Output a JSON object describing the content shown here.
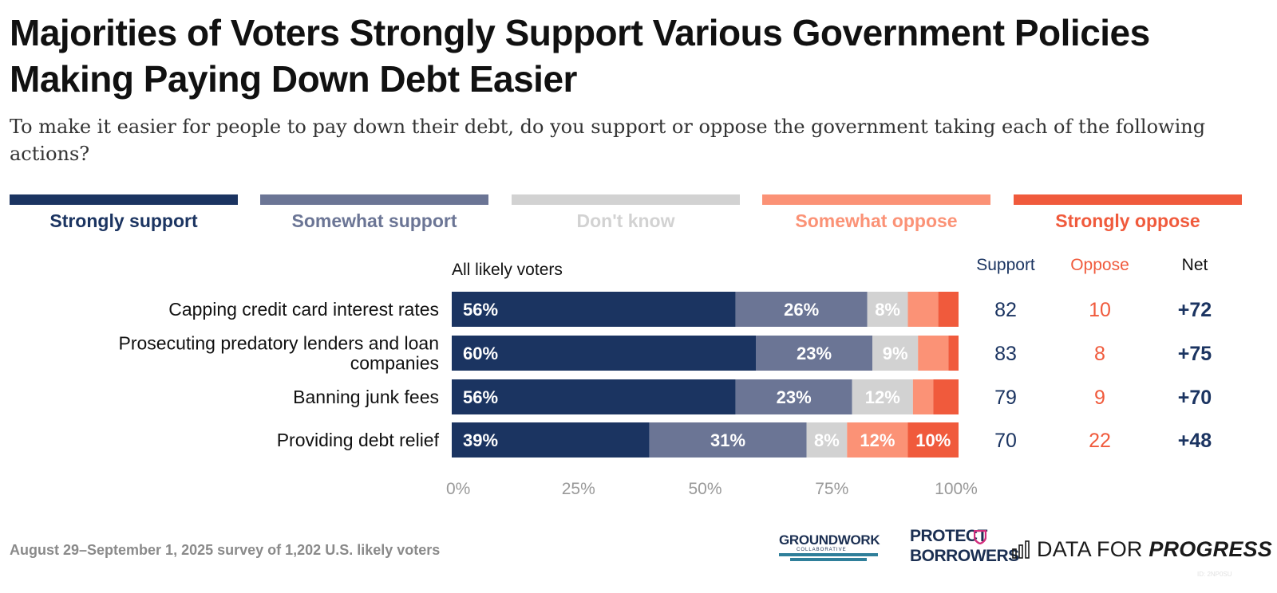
{
  "header": {
    "title": "Majorities of Voters Strongly Support Various Government Policies Making Paying Down Debt Easier",
    "subtitle": "To make it easier for people to pay down their debt, do you support or oppose the government taking each of the following actions?"
  },
  "colors": {
    "strongly_support": "#1b3461",
    "somewhat_support": "#6b7595",
    "dont_know": "#d2d2d2",
    "somewhat_oppose": "#fb9276",
    "strongly_oppose": "#f05a3c",
    "axis_text": "#999999"
  },
  "legend": [
    {
      "label": "Strongly support",
      "color": "#1b3461"
    },
    {
      "label": "Somewhat support",
      "color": "#6b7595"
    },
    {
      "label": "Don't know",
      "color": "#d2d2d2"
    },
    {
      "label": "Somewhat oppose",
      "color": "#fb9276"
    },
    {
      "label": "Strongly oppose",
      "color": "#f05a3c"
    }
  ],
  "chart_data": {
    "type": "bar",
    "orientation": "horizontal",
    "stacked": true,
    "group_label": "All likely voters",
    "categories": [
      [
        "Capping credit card interest rates"
      ],
      [
        "Prosecuting predatory lenders and loan",
        "companies"
      ],
      [
        "Banning junk fees"
      ],
      [
        "Providing debt relief"
      ]
    ],
    "series": [
      {
        "name": "Strongly support",
        "values": [
          56,
          60,
          56,
          39
        ]
      },
      {
        "name": "Somewhat support",
        "values": [
          26,
          23,
          23,
          31
        ]
      },
      {
        "name": "Don't know",
        "values": [
          8,
          9,
          12,
          8
        ]
      },
      {
        "name": "Somewhat oppose",
        "values": [
          6,
          6,
          4,
          12
        ]
      },
      {
        "name": "Strongly oppose",
        "values": [
          4,
          2,
          5,
          10
        ]
      }
    ],
    "data_labels": [
      [
        "56%",
        "26%",
        "8%",
        "",
        ""
      ],
      [
        "60%",
        "23%",
        "9%",
        "",
        ""
      ],
      [
        "56%",
        "23%",
        "12%",
        "",
        ""
      ],
      [
        "39%",
        "31%",
        "8%",
        "12%",
        "10%"
      ]
    ],
    "x_ticks": [
      "0%",
      "25%",
      "50%",
      "75%",
      "100%"
    ],
    "xlim": [
      0,
      100
    ],
    "summary_columns": {
      "headers": [
        "Support",
        "Oppose",
        "Net"
      ],
      "support": [
        "82",
        "83",
        "79",
        "70"
      ],
      "oppose": [
        "10",
        "8",
        "9",
        "22"
      ],
      "net": [
        "+72",
        "+75",
        "+70",
        "+48"
      ]
    }
  },
  "footer": {
    "note": "August 29–September 1, 2025 survey of 1,202 U.S. likely voters",
    "logos": {
      "groundwork": "GROUNDWORK",
      "groundwork_sub": "COLLABORATIVE",
      "protect_borrowers_line1": "PROTECT",
      "protect_borrowers_line2": "BORROWERS",
      "dfp_regular": "DATA FOR ",
      "dfp_bold": "PROGRESS"
    },
    "id_text": "ID: 2NP0SU"
  }
}
